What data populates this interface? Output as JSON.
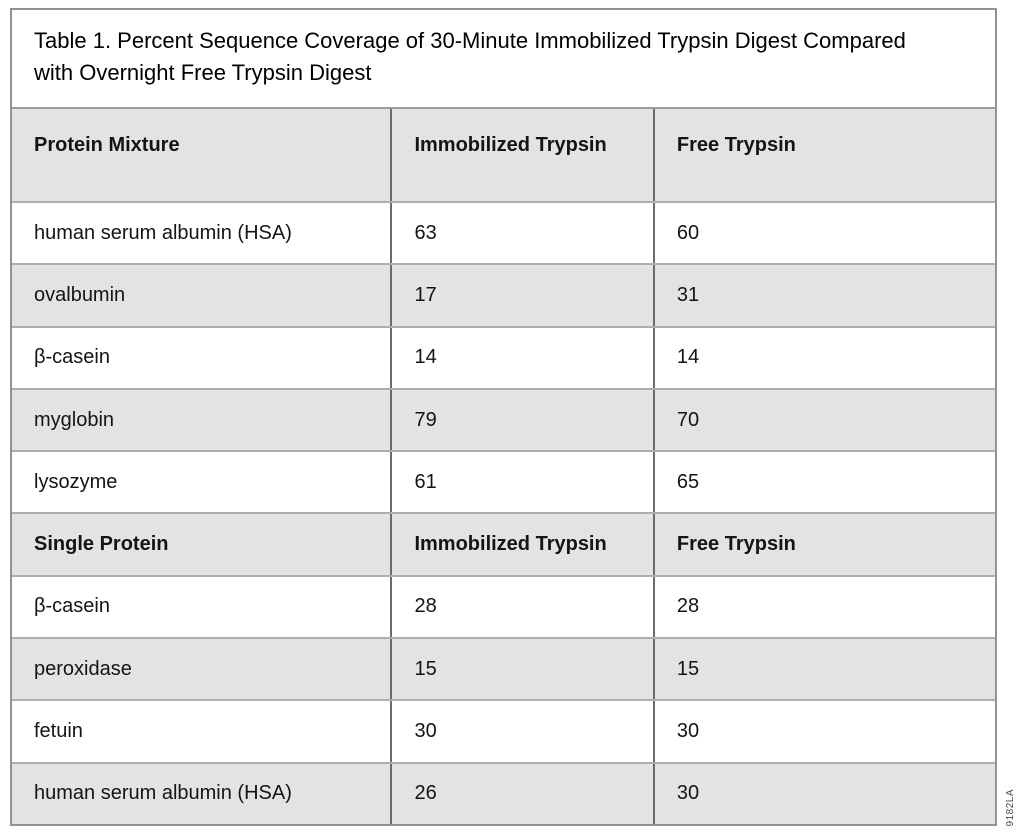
{
  "title": "Table 1. Percent Sequence Coverage of 30-Minute Immobilized Trypsin Digest Compared with Overnight Free Trypsin Digest",
  "header": {
    "col1": "Protein Mixture",
    "col2": "Immobilized Trypsin",
    "col3": "Free Trypsin"
  },
  "mixture_rows": [
    {
      "protein": "human serum albumin (HSA)",
      "immobilized": "63",
      "free": "60"
    },
    {
      "protein": "ovalbumin",
      "immobilized": "17",
      "free": "31"
    },
    {
      "protein": "β-casein",
      "immobilized": "14",
      "free": "14"
    },
    {
      "protein": "myglobin",
      "immobilized": "79",
      "free": "70"
    },
    {
      "protein": "lysozyme",
      "immobilized": "61",
      "free": "65"
    }
  ],
  "single_header": {
    "col1": "Single Protein",
    "col2": "Immobilized Trypsin",
    "col3": "Free Trypsin"
  },
  "single_rows": [
    {
      "protein": "β-casein",
      "immobilized": "28",
      "free": "28"
    },
    {
      "protein": "peroxidase",
      "immobilized": "15",
      "free": "15"
    },
    {
      "protein": "fetuin",
      "immobilized": "30",
      "free": "30"
    },
    {
      "protein": "human serum albumin (HSA)",
      "immobilized": "26",
      "free": "30"
    }
  ],
  "figure_code": "9182LA",
  "colors": {
    "shaded_row_bg": "#e3e3e3",
    "white_row_bg": "#ffffff",
    "outer_border": "#939393",
    "vertical_divider": "#6b6b6b",
    "horizontal_divider": "#adadad",
    "text": "#141414"
  }
}
